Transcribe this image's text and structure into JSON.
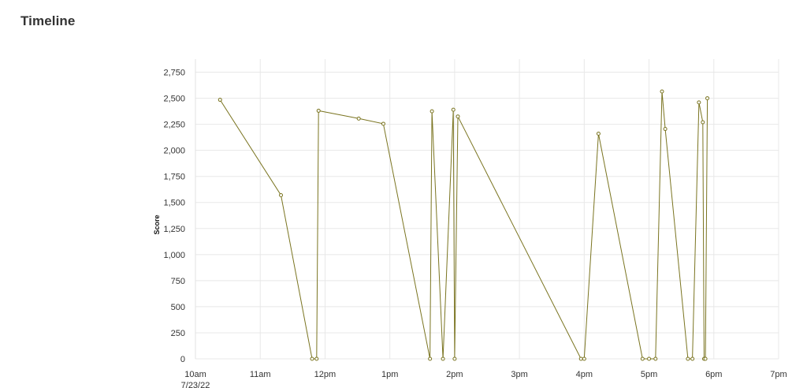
{
  "page": {
    "title": "Timeline"
  },
  "chart_data": {
    "type": "line",
    "title": "Timeline",
    "xlabel": "",
    "ylabel": "Score",
    "series_color": "#7a7420",
    "x_unit": "hours since midnight, 7/23/22",
    "xlim": [
      10,
      19
    ],
    "ylim": [
      0,
      2875
    ],
    "grid": true,
    "legend": "none",
    "x_ticks": [
      {
        "value": 10,
        "label": "10am",
        "sublabel": "7/23/22"
      },
      {
        "value": 11,
        "label": "11am"
      },
      {
        "value": 12,
        "label": "12pm"
      },
      {
        "value": 13,
        "label": "1pm"
      },
      {
        "value": 14,
        "label": "2pm"
      },
      {
        "value": 15,
        "label": "3pm"
      },
      {
        "value": 16,
        "label": "4pm"
      },
      {
        "value": 17,
        "label": "5pm"
      },
      {
        "value": 18,
        "label": "6pm"
      },
      {
        "value": 19,
        "label": "7pm"
      }
    ],
    "y_ticks": [
      {
        "value": 0,
        "label": "0"
      },
      {
        "value": 250,
        "label": "250"
      },
      {
        "value": 500,
        "label": "500"
      },
      {
        "value": 750,
        "label": "750"
      },
      {
        "value": 1000,
        "label": "1,000"
      },
      {
        "value": 1250,
        "label": "1,250"
      },
      {
        "value": 1500,
        "label": "1,500"
      },
      {
        "value": 1750,
        "label": "1,750"
      },
      {
        "value": 2000,
        "label": "2,000"
      },
      {
        "value": 2250,
        "label": "2,250"
      },
      {
        "value": 2500,
        "label": "2,500"
      },
      {
        "value": 2750,
        "label": "2,750"
      }
    ],
    "series": [
      {
        "name": "Score",
        "x": [
          10.38,
          11.32,
          11.8,
          11.87,
          11.9,
          12.52,
          12.9,
          13.62,
          13.65,
          13.82,
          13.98,
          14.0,
          14.05,
          15.95,
          16.0,
          16.22,
          16.9,
          17.0,
          17.1,
          17.2,
          17.25,
          17.6,
          17.67,
          17.77,
          17.83,
          17.85,
          17.87,
          17.9
        ],
        "values": [
          2485,
          1570,
          0,
          0,
          2380,
          2305,
          2255,
          0,
          2375,
          0,
          2390,
          0,
          2325,
          0,
          0,
          2160,
          0,
          0,
          0,
          2565,
          2205,
          0,
          0,
          2460,
          2270,
          0,
          0,
          2500
        ]
      }
    ]
  }
}
